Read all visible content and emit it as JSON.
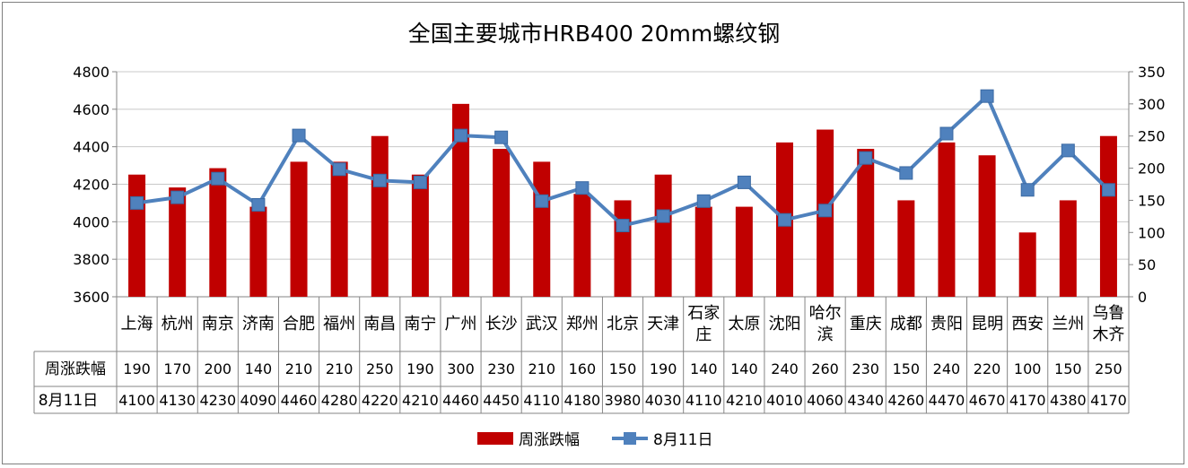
{
  "chart_data": {
    "type": "bar+line",
    "title": "全国主要城市HRB400 20mm螺纹钢",
    "categories": [
      "上海",
      "杭州",
      "南京",
      "济南",
      "合肥",
      "福州",
      "南昌",
      "南宁",
      "广州",
      "长沙",
      "武汉",
      "郑州",
      "北京",
      "天津",
      "石家庄",
      "太原",
      "沈阳",
      "哈尔滨",
      "重庆",
      "成都",
      "贵阳",
      "昆明",
      "西安",
      "兰州",
      "乌鲁木齐"
    ],
    "category_lines": [
      [
        "上海"
      ],
      [
        "杭州"
      ],
      [
        "南京"
      ],
      [
        "济南"
      ],
      [
        "合肥"
      ],
      [
        "福州"
      ],
      [
        "南昌"
      ],
      [
        "南宁"
      ],
      [
        "广州"
      ],
      [
        "长沙"
      ],
      [
        "武汉"
      ],
      [
        "郑州"
      ],
      [
        "北京"
      ],
      [
        "天津"
      ],
      [
        "石家",
        "庄"
      ],
      [
        "太原"
      ],
      [
        "沈阳"
      ],
      [
        "哈尔",
        "滨"
      ],
      [
        "重庆"
      ],
      [
        "成都"
      ],
      [
        "贵阳"
      ],
      [
        "昆明"
      ],
      [
        "西安"
      ],
      [
        "兰州"
      ],
      [
        "乌鲁",
        "木齐"
      ]
    ],
    "series": [
      {
        "name": "周涨跌幅",
        "type": "bar",
        "axis": "right",
        "color": "#C00000",
        "values": [
          190,
          170,
          200,
          140,
          210,
          210,
          250,
          190,
          300,
          230,
          210,
          160,
          150,
          190,
          140,
          140,
          240,
          260,
          230,
          150,
          240,
          220,
          100,
          150,
          250
        ]
      },
      {
        "name": "8月11日",
        "type": "line",
        "axis": "left",
        "color": "#4F81BD",
        "values": [
          4100,
          4130,
          4230,
          4090,
          4460,
          4280,
          4220,
          4210,
          4460,
          4450,
          4110,
          4180,
          3980,
          4030,
          4110,
          4210,
          4010,
          4060,
          4340,
          4260,
          4470,
          4670,
          4170,
          4380,
          4170
        ]
      }
    ],
    "y_left": {
      "min": 3600,
      "max": 4800,
      "ticks": [
        3600,
        3800,
        4000,
        4200,
        4400,
        4600,
        4800
      ]
    },
    "y_right": {
      "min": 0,
      "max": 350,
      "ticks": [
        0,
        50,
        100,
        150,
        200,
        250,
        300,
        350
      ]
    },
    "grid": true,
    "legend": "bottom",
    "data_table": {
      "row_labels": [
        "周涨跌幅",
        "8月11日"
      ]
    }
  }
}
